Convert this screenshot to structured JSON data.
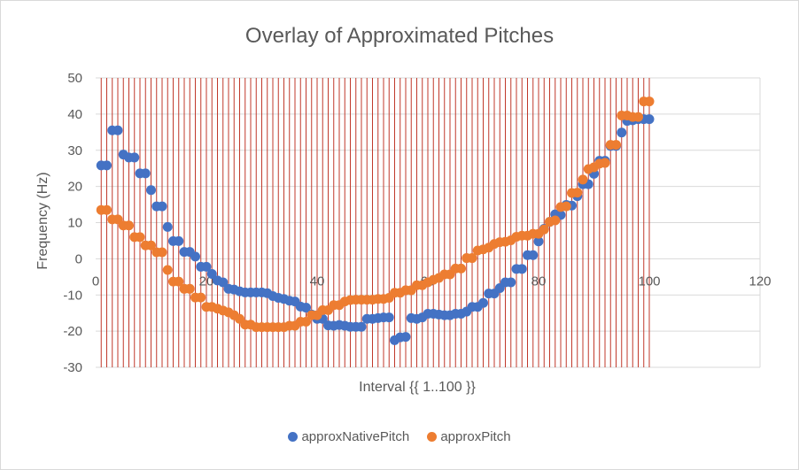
{
  "chart_data": {
    "type": "scatter",
    "title": "Overlay of Approximated Pitches",
    "xlabel": "Interval {{ 1..100 }}",
    "ylabel": "Frequency (Hz)",
    "xlim": [
      0,
      120
    ],
    "ylim": [
      -30,
      50
    ],
    "x_ticks": [
      0,
      20,
      40,
      60,
      80,
      100,
      120
    ],
    "y_ticks": [
      -30,
      -20,
      -10,
      0,
      10,
      20,
      30,
      40,
      50
    ],
    "grid": "horizontal",
    "vertical_markers": {
      "from": 1,
      "to": 100,
      "step": 1,
      "color": "#c0392b"
    },
    "legend_position": "bottom",
    "series": [
      {
        "name": "approxNativePitch",
        "color": "#4472c4",
        "x": [
          1,
          2,
          3,
          4,
          5,
          6,
          7,
          8,
          9,
          10,
          11,
          12,
          13,
          14,
          15,
          16,
          17,
          18,
          19,
          20,
          21,
          22,
          23,
          24,
          25,
          26,
          27,
          28,
          29,
          30,
          31,
          32,
          33,
          34,
          35,
          36,
          37,
          38,
          39,
          40,
          41,
          42,
          43,
          44,
          45,
          46,
          47,
          48,
          49,
          50,
          51,
          52,
          53,
          54,
          55,
          56,
          57,
          58,
          59,
          60,
          61,
          62,
          63,
          64,
          65,
          66,
          67,
          68,
          69,
          70,
          71,
          72,
          73,
          74,
          75,
          76,
          77,
          78,
          79,
          80,
          81,
          82,
          83,
          84,
          85,
          86,
          87,
          88,
          89,
          90,
          91,
          92,
          93,
          94,
          95,
          96,
          97,
          98,
          99,
          100
        ],
        "y": [
          25.8,
          25.8,
          35.5,
          35.5,
          28.8,
          28,
          28,
          23.6,
          23.6,
          19,
          14.5,
          14.5,
          8.8,
          4.9,
          4.9,
          1.9,
          1.9,
          0.6,
          -2.2,
          -2.2,
          -4.2,
          -6,
          -6.5,
          -8.3,
          -8.5,
          -9,
          -9.3,
          -9.3,
          -9.3,
          -9.3,
          -9.5,
          -10.3,
          -10.8,
          -11.1,
          -11.6,
          -11.8,
          -13.2,
          -13.5,
          -15.4,
          -16.6,
          -16.6,
          -18.4,
          -18.5,
          -18.3,
          -18.5,
          -18.8,
          -18.8,
          -18.8,
          -16.6,
          -16.6,
          -16.4,
          -16.2,
          -16.2,
          -22.5,
          -21.7,
          -21.6,
          -16.4,
          -16.6,
          -16.2,
          -15.2,
          -15.2,
          -15.4,
          -15.6,
          -15.6,
          -15.2,
          -15.2,
          -14.6,
          -13.3,
          -13.3,
          -12.2,
          -9.6,
          -9.6,
          -8.1,
          -6.5,
          -6.5,
          -2.8,
          -2.8,
          1,
          1,
          4.8,
          8.3,
          10.2,
          12.3,
          12.1,
          14.9,
          14.7,
          17.3,
          20.6,
          20.6,
          23.5,
          27.1,
          27.1,
          31.2,
          31.2,
          34.9,
          38.1,
          38.3,
          38.6,
          38.6,
          38.6
        ]
      },
      {
        "name": "approxPitch",
        "color": "#ed7d31",
        "x": [
          1,
          2,
          3,
          4,
          5,
          6,
          7,
          8,
          9,
          10,
          11,
          12,
          13,
          14,
          15,
          16,
          17,
          18,
          19,
          20,
          21,
          22,
          23,
          24,
          25,
          26,
          27,
          28,
          29,
          30,
          31,
          32,
          33,
          34,
          35,
          36,
          37,
          38,
          39,
          40,
          41,
          42,
          43,
          44,
          45,
          46,
          47,
          48,
          49,
          50,
          51,
          52,
          53,
          54,
          55,
          56,
          57,
          58,
          59,
          60,
          61,
          62,
          63,
          64,
          65,
          66,
          67,
          68,
          69,
          70,
          71,
          72,
          73,
          74,
          75,
          76,
          77,
          78,
          79,
          80,
          81,
          82,
          83,
          84,
          85,
          86,
          87,
          88,
          89,
          90,
          91,
          92,
          93,
          94,
          95,
          96,
          97,
          98,
          99,
          100
        ],
        "y": [
          13.5,
          13.5,
          10.9,
          10.9,
          9.2,
          9.2,
          6,
          6,
          3.7,
          3.7,
          1.8,
          1.8,
          -3.1,
          -6.3,
          -6.3,
          -8.3,
          -8.3,
          -10.7,
          -10.7,
          -13.3,
          -13.3,
          -13.8,
          -14.3,
          -14.8,
          -15.6,
          -16.6,
          -18.2,
          -18.2,
          -18.9,
          -18.9,
          -18.9,
          -18.9,
          -18.9,
          -18.9,
          -18.5,
          -18.5,
          -17.4,
          -17.4,
          -15.6,
          -15.6,
          -14.2,
          -14.2,
          -12.8,
          -12.8,
          -11.8,
          -11.4,
          -11.3,
          -11.3,
          -11.3,
          -11.3,
          -11.1,
          -11.1,
          -10.8,
          -9.4,
          -9.4,
          -8.7,
          -8.7,
          -7.3,
          -7.3,
          -6.5,
          -5.8,
          -5.3,
          -4.3,
          -4.3,
          -2.7,
          -2.7,
          0.2,
          0.2,
          2.3,
          2.6,
          3.1,
          4.1,
          4.6,
          4.7,
          5.1,
          6.1,
          6.4,
          6.4,
          6.9,
          6.9,
          8.1,
          10.2,
          10.6,
          14.3,
          14.5,
          18.2,
          18.3,
          21.9,
          24.8,
          25.3,
          26.3,
          26.5,
          31.5,
          31.5,
          39.6,
          39.6,
          39.2,
          39.2,
          43.5,
          43.5
        ]
      }
    ]
  }
}
